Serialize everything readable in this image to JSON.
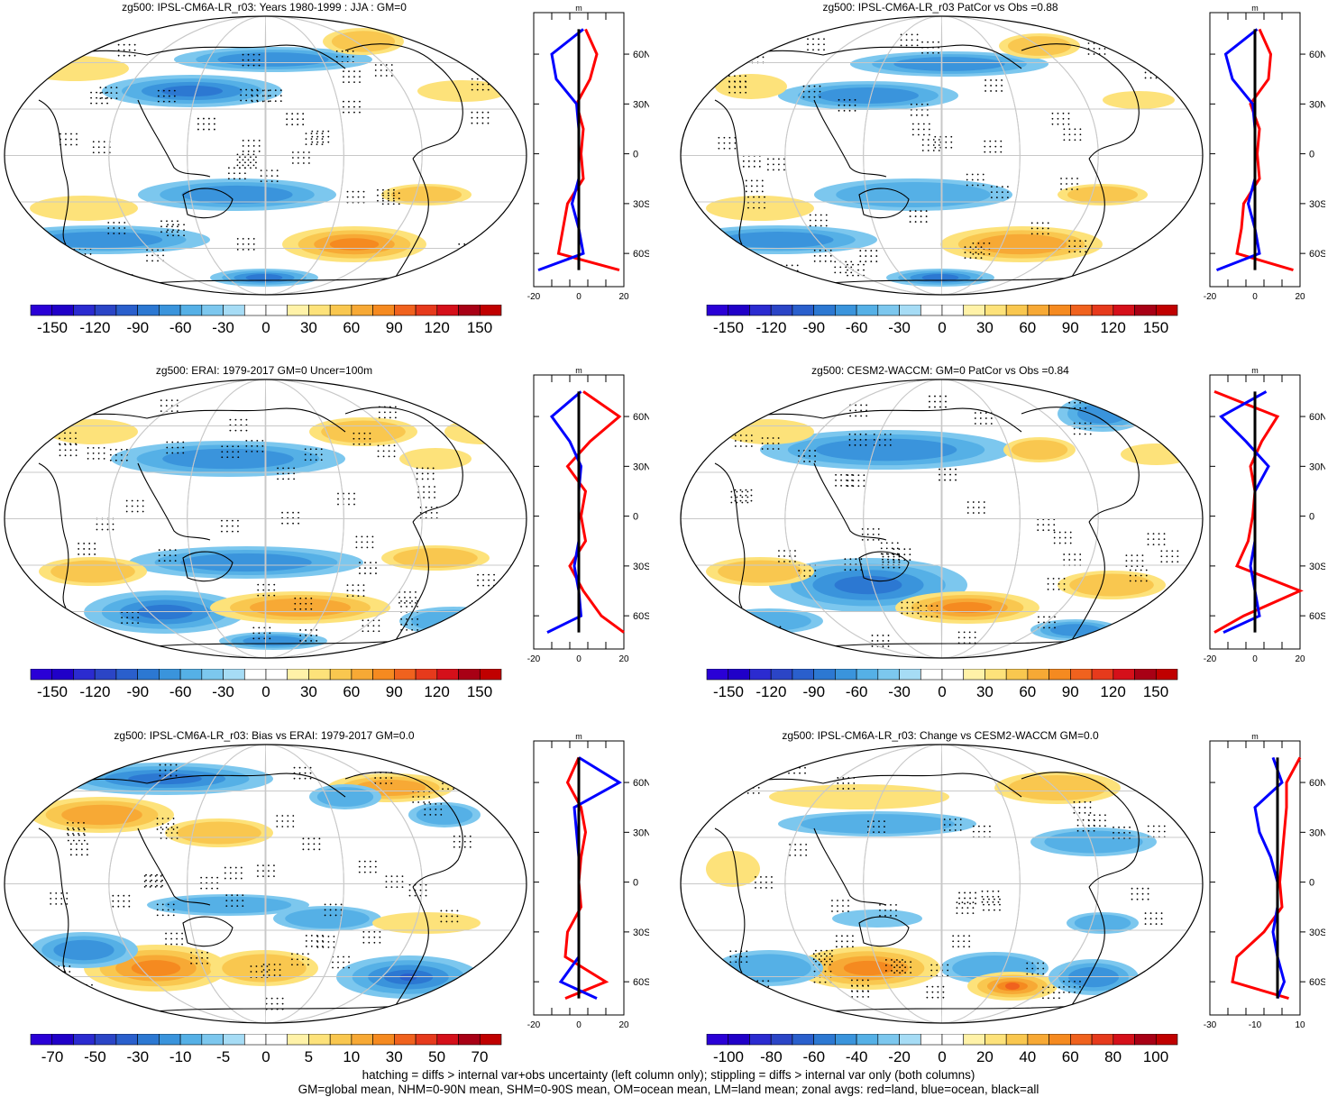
{
  "colors": {
    "pos": [
      "#fff2a8",
      "#fde27a",
      "#f9c74f",
      "#f7a935",
      "#f58a20",
      "#f0621e",
      "#e63a1c",
      "#d5101a",
      "#a80015"
    ],
    "neg": [
      "#a6dcf5",
      "#7cc7ee",
      "#55b0e6",
      "#3a94dc",
      "#2c78d2",
      "#2a5fcc",
      "#2b45c6",
      "#2a2bcf",
      "#2000c8"
    ],
    "land": "#ff0000",
    "ocean": "#0000ff",
    "all": "#000000"
  },
  "panels": [
    {
      "id": "p1",
      "title": "zg500: IPSL-CM6A-LR_r03: Years 1980-1999 : JJA : GM=0",
      "colorbar_labels": [
        "-150",
        "-120",
        "-90",
        "-60",
        "-30",
        "0",
        "30",
        "60",
        "90",
        "120",
        "150"
      ],
      "profile": {
        "units": "m",
        "x_ticks": [
          "-20",
          "0",
          "20"
        ],
        "lat_labels": [
          "60N",
          "30N",
          "0",
          "30S",
          "60S"
        ]
      }
    },
    {
      "id": "p2",
      "title": "zg500: IPSL-CM6A-LR_r03 PatCor vs Obs =0.88",
      "colorbar_labels": [
        "-150",
        "-120",
        "-90",
        "-60",
        "-30",
        "0",
        "30",
        "60",
        "90",
        "120",
        "150"
      ],
      "profile": {
        "units": "m",
        "x_ticks": [
          "-20",
          "0",
          "20"
        ],
        "lat_labels": [
          "60N",
          "30N",
          "0",
          "30S",
          "60S"
        ]
      }
    },
    {
      "id": "p3",
      "title": "zg500: ERAI: 1979-2017 GM=0 Uncer=100m",
      "colorbar_labels": [
        "-150",
        "-120",
        "-90",
        "-60",
        "-30",
        "0",
        "30",
        "60",
        "90",
        "120",
        "150"
      ],
      "profile": {
        "units": "m",
        "x_ticks": [
          "-20",
          "0",
          "20"
        ],
        "lat_labels": [
          "60N",
          "30N",
          "0",
          "30S",
          "60S"
        ]
      }
    },
    {
      "id": "p4",
      "title": "zg500: CESM2-WACCM: GM=0 PatCor vs Obs =0.84",
      "colorbar_labels": [
        "-150",
        "-120",
        "-90",
        "-60",
        "-30",
        "0",
        "30",
        "60",
        "90",
        "120",
        "150"
      ],
      "profile": {
        "units": "m",
        "x_ticks": [
          "-20",
          "0",
          "20"
        ],
        "lat_labels": [
          "60N",
          "30N",
          "0",
          "30S",
          "60S"
        ]
      }
    },
    {
      "id": "p5",
      "title": "zg500: IPSL-CM6A-LR_r03: Bias vs ERAI: 1979-2017 GM=0.0",
      "colorbar_labels": [
        "-70",
        "-50",
        "-30",
        "-10",
        "-5",
        "0",
        "5",
        "10",
        "30",
        "50",
        "70"
      ],
      "profile": {
        "units": "m",
        "x_ticks": [
          "-20",
          "0",
          "20"
        ],
        "lat_labels": [
          "60N",
          "30N",
          "0",
          "30S",
          "60S"
        ]
      }
    },
    {
      "id": "p6",
      "title": "zg500: IPSL-CM6A-LR_r03: Change vs CESM2-WACCM GM=0.0",
      "colorbar_labels": [
        "-100",
        "-80",
        "-60",
        "-40",
        "-20",
        "0",
        "20",
        "40",
        "60",
        "80",
        "100"
      ],
      "profile": {
        "units": "m",
        "x_ticks": [
          "-30",
          "-10",
          "10"
        ],
        "lat_labels": [
          "60N",
          "30N",
          "0",
          "30S",
          "60S"
        ]
      }
    }
  ],
  "footer": {
    "line1": "hatching = diffs > internal var+obs uncertainty (left column only); stippling = diffs > internal var only (both columns)",
    "line2": "GM=global mean, NHM=0-90N mean, SHM=0-90S mean, OM=ocean mean, LM=land mean; zonal avgs: red=land, blue=ocean, black=all"
  },
  "chart_data": [
    {
      "type": "heatmap",
      "title": "zg500: IPSL-CM6A-LR_r03: Years 1980-1999 : JJA : GM=0",
      "units": "m",
      "colorbar_range": [
        -150,
        150
      ],
      "zonal_avg": {
        "lat": [
          75,
          60,
          45,
          30,
          15,
          0,
          -15,
          -30,
          -45,
          -60,
          -70
        ],
        "land": [
          3,
          8,
          5,
          -1,
          2,
          1,
          2,
          -5,
          -7,
          -9,
          18
        ],
        "ocean": [
          2,
          -12,
          -10,
          -1,
          0,
          0,
          0,
          -3,
          0,
          2,
          -18
        ],
        "all": [
          0,
          0,
          0,
          0,
          0,
          0,
          0,
          0,
          0,
          0,
          0
        ]
      }
    },
    {
      "type": "heatmap",
      "title": "zg500: IPSL-CM6A-LR_r03 PatCor vs Obs =0.88",
      "units": "m",
      "colorbar_range": [
        -150,
        150
      ],
      "zonal_avg": {
        "lat": [
          75,
          60,
          45,
          30,
          15,
          0,
          -15,
          -30,
          -45,
          -60,
          -70
        ],
        "land": [
          2,
          7,
          6,
          -2,
          2,
          1,
          2,
          -5,
          -6,
          -8,
          17
        ],
        "ocean": [
          1,
          -13,
          -10,
          -1,
          0,
          0,
          0,
          -3,
          0,
          2,
          -17
        ],
        "all": [
          0,
          0,
          0,
          0,
          0,
          0,
          0,
          0,
          0,
          0,
          0
        ]
      }
    },
    {
      "type": "heatmap",
      "title": "zg500: ERAI: 1979-2017 GM=0 Uncer=100m",
      "units": "m",
      "colorbar_range": [
        -150,
        150
      ],
      "zonal_avg": {
        "lat": [
          75,
          60,
          45,
          30,
          15,
          0,
          -15,
          -30,
          -45,
          -60,
          -70
        ],
        "land": [
          2,
          18,
          5,
          -5,
          3,
          1,
          3,
          -4,
          2,
          10,
          20
        ],
        "ocean": [
          1,
          -12,
          -4,
          1,
          0,
          0,
          0,
          -2,
          0,
          1,
          -14
        ],
        "all": [
          0,
          0,
          0,
          0,
          0,
          0,
          0,
          0,
          0,
          0,
          0
        ]
      }
    },
    {
      "type": "heatmap",
      "title": "zg500: CESM2-WACCM: GM=0 PatCor vs Obs =0.84",
      "units": "m",
      "colorbar_range": [
        -150,
        150
      ],
      "zonal_avg": {
        "lat": [
          75,
          60,
          45,
          30,
          15,
          0,
          -15,
          -30,
          -45,
          -60,
          -70
        ],
        "land": [
          -18,
          10,
          3,
          -2,
          0,
          -1,
          -3,
          -8,
          20,
          -5,
          -18
        ],
        "ocean": [
          5,
          -15,
          -4,
          6,
          0,
          0,
          0,
          -2,
          0,
          2,
          -14
        ],
        "all": [
          0,
          0,
          0,
          0,
          0,
          0,
          0,
          0,
          0,
          0,
          0
        ]
      }
    },
    {
      "type": "heatmap",
      "title": "zg500: IPSL-CM6A-LR_r03: Bias vs ERAI: 1979-2017 GM=0.0",
      "units": "m",
      "colorbar_range": [
        -70,
        70
      ],
      "zonal_avg": {
        "lat": [
          75,
          60,
          45,
          30,
          15,
          0,
          -15,
          -30,
          -45,
          -60,
          -70
        ],
        "land": [
          0,
          -5,
          1,
          3,
          1,
          0,
          1,
          -5,
          -6,
          12,
          -6
        ],
        "ocean": [
          0,
          18,
          -2,
          -1,
          0,
          0,
          0,
          0,
          0,
          -8,
          8
        ],
        "all": [
          0,
          0,
          0,
          0,
          0,
          0,
          0,
          0,
          0,
          0,
          0
        ]
      }
    },
    {
      "type": "heatmap",
      "title": "zg500: IPSL-CM6A-LR_r03: Change vs CESM2-WACCM GM=0.0",
      "units": "m",
      "colorbar_range": [
        -100,
        100
      ],
      "zonal_avg": {
        "lat": [
          75,
          60,
          45,
          30,
          15,
          0,
          -15,
          -30,
          -45,
          -60,
          -70
        ],
        "land": [
          10,
          4,
          4,
          3,
          2,
          1,
          2,
          -6,
          -18,
          -20,
          5
        ],
        "ocean": [
          -2,
          2,
          -10,
          -8,
          -3,
          0,
          0,
          -2,
          0,
          3,
          0
        ],
        "all": [
          0,
          0,
          0,
          0,
          0,
          0,
          0,
          0,
          0,
          0,
          0
        ]
      }
    }
  ]
}
